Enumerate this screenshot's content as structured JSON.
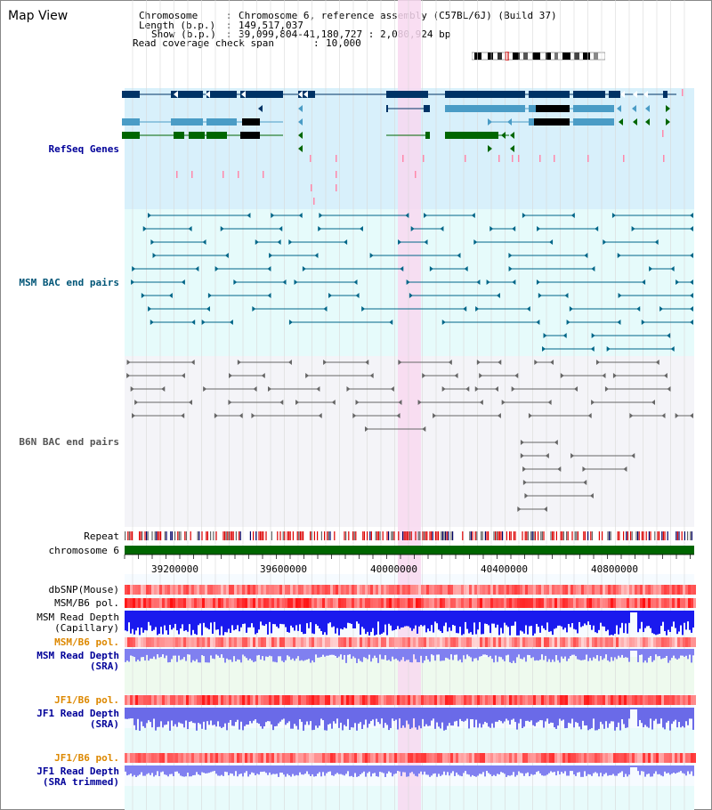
{
  "title": "Map View",
  "header": {
    "chromosome_key": "Chromosome",
    "chromosome_val": "Chromosome 6, reference assembly (C57BL/6J) (Build 37)",
    "length_key": "Length (b.p.)",
    "length_val": "149,517,037",
    "show_key": "Show (b.p.)",
    "show_val": "39,099,804-41,180,727 : 2,080,924 bp",
    "span_key": "Read coverage check span",
    "span_val": "10,000"
  },
  "tracks": {
    "refseq": "RefSeq Genes",
    "msm_bac": "MSM BAC end pairs",
    "b6n_bac": "B6N BAC end pairs",
    "repeat": "Repeat",
    "chromosome": "chromosome 6",
    "dbsnp": "dbSNP(Mouse)",
    "msm_b6_pol_1": "MSM/B6 pol.",
    "msm_depth_cap_1": "MSM Read Depth",
    "msm_depth_cap_2": "(Capillary)",
    "msm_b6_pol_2": "MSM/B6 pol.",
    "msm_depth_sra_1": "MSM Read Depth",
    "msm_depth_sra_2": "(SRA)",
    "jf1_pol_1": "JF1/B6 pol.",
    "jf1_depth_1": "JF1 Read Depth",
    "jf1_depth_2": "(SRA)",
    "jf1_pol_2": "JF1/B6 pol.",
    "jf1_trim_1": "JF1 Read Depth",
    "jf1_trim_2": "(SRA trimmed)"
  },
  "axis": {
    "ticks": [
      "39200000",
      "39600000",
      "40000000",
      "40400000",
      "40800000"
    ]
  },
  "colors": {
    "refseq_bg": "#d8f0fb",
    "msm_bac_bg": "#e6fbfb",
    "b6n_bg": "#f4f4f8",
    "highlight": "#f8d8f0",
    "gene_dark": "#003366",
    "gene_light": "#4a9cc6",
    "gene_green": "#006600",
    "bac_teal": "#006688",
    "bac_gray": "#666666",
    "chromosome_bar": "#006600",
    "depth_blue": "#2020ee",
    "label_blue": "#000099",
    "label_teal": "#005577",
    "label_orange": "#dd8800"
  }
}
